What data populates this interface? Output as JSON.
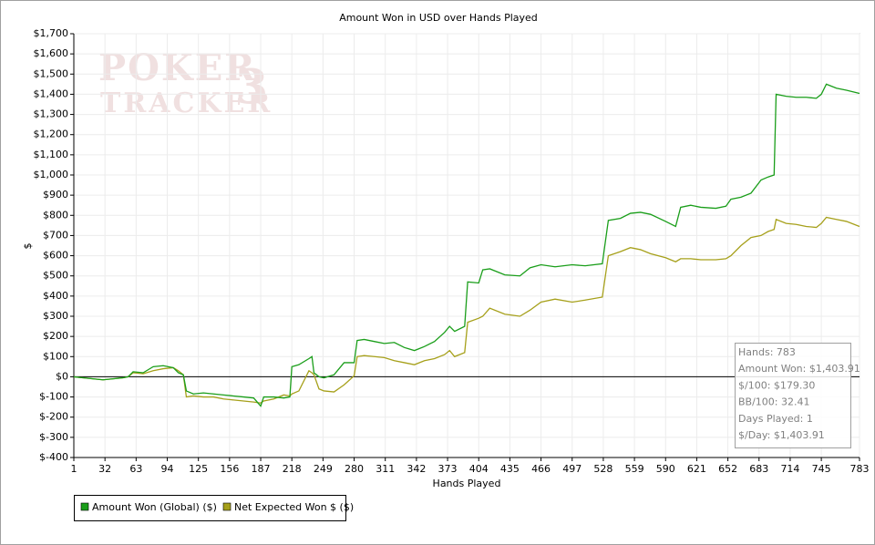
{
  "chart_data": {
    "type": "line",
    "title": "Amount Won in USD over Hands Played",
    "x_label": "Hands Played",
    "y_label": "$",
    "watermark": [
      "POKER",
      "TRACKER",
      "3"
    ],
    "xlim": [
      1,
      783
    ],
    "xticks": [
      1,
      32,
      63,
      94,
      125,
      156,
      187,
      218,
      249,
      280,
      311,
      342,
      373,
      404,
      435,
      466,
      497,
      528,
      559,
      590,
      621,
      652,
      683,
      714,
      745,
      783
    ],
    "ylim": [
      -400,
      1700
    ],
    "yticks": [
      {
        "value": -400,
        "label": "$-400"
      },
      {
        "value": -300,
        "label": "$-300"
      },
      {
        "value": -200,
        "label": "$-200"
      },
      {
        "value": -100,
        "label": "$-100"
      },
      {
        "value": 0,
        "label": "$0"
      },
      {
        "value": 100,
        "label": "$100"
      },
      {
        "value": 200,
        "label": "$200"
      },
      {
        "value": 300,
        "label": "$300"
      },
      {
        "value": 400,
        "label": "$400"
      },
      {
        "value": 500,
        "label": "$500"
      },
      {
        "value": 600,
        "label": "$600"
      },
      {
        "value": 700,
        "label": "$700"
      },
      {
        "value": 800,
        "label": "$800"
      },
      {
        "value": 900,
        "label": "$900"
      },
      {
        "value": 1000,
        "label": "$1,000"
      },
      {
        "value": 1100,
        "label": "$1,100"
      },
      {
        "value": 1200,
        "label": "$1,200"
      },
      {
        "value": 1300,
        "label": "$1,300"
      },
      {
        "value": 1400,
        "label": "$1,400"
      },
      {
        "value": 1500,
        "label": "$1,500"
      },
      {
        "value": 1600,
        "label": "$1,600"
      },
      {
        "value": 1700,
        "label": "$1,700"
      }
    ],
    "grid": true,
    "legend": "bottom-left",
    "x": [
      1,
      10,
      20,
      30,
      40,
      50,
      55,
      60,
      70,
      80,
      90,
      100,
      105,
      110,
      113,
      120,
      130,
      140,
      150,
      160,
      170,
      180,
      187,
      190,
      200,
      210,
      216,
      218,
      225,
      235,
      238,
      240,
      245,
      250,
      260,
      270,
      280,
      283,
      290,
      300,
      310,
      320,
      330,
      340,
      350,
      360,
      370,
      375,
      380,
      390,
      393,
      404,
      408,
      415,
      430,
      445,
      455,
      466,
      480,
      497,
      510,
      527,
      533,
      545,
      555,
      565,
      575,
      590,
      600,
      605,
      615,
      625,
      640,
      650,
      655,
      665,
      675,
      685,
      692,
      698,
      700,
      710,
      720,
      730,
      740,
      745,
      750,
      760,
      770,
      783
    ],
    "series": [
      {
        "name": "Amount Won (Global) ($)",
        "color": "#1a9e1a",
        "values": [
          0,
          -5,
          -10,
          -15,
          -10,
          -5,
          0,
          25,
          20,
          50,
          55,
          45,
          20,
          10,
          -70,
          -85,
          -80,
          -85,
          -90,
          -95,
          -100,
          -105,
          -145,
          -100,
          -100,
          -105,
          -100,
          50,
          60,
          90,
          100,
          20,
          0,
          -5,
          10,
          70,
          70,
          180,
          185,
          175,
          165,
          170,
          145,
          130,
          150,
          175,
          220,
          250,
          225,
          250,
          470,
          465,
          530,
          535,
          505,
          500,
          540,
          555,
          545,
          555,
          550,
          560,
          775,
          785,
          810,
          815,
          805,
          770,
          745,
          840,
          850,
          840,
          835,
          845,
          880,
          890,
          910,
          975,
          990,
          1000,
          1400,
          1390,
          1385,
          1385,
          1380,
          1400,
          1450,
          1430,
          1420,
          1404
        ]
      },
      {
        "name": "Net Expected Won $ ($)",
        "color": "#a6a01a",
        "values": [
          0,
          -5,
          -10,
          -15,
          -10,
          -5,
          0,
          20,
          15,
          30,
          40,
          45,
          30,
          10,
          -100,
          -95,
          -100,
          -100,
          -110,
          -115,
          -120,
          -125,
          -130,
          -120,
          -110,
          -90,
          -95,
          -85,
          -70,
          30,
          20,
          10,
          -60,
          -70,
          -75,
          -40,
          5,
          100,
          105,
          100,
          95,
          80,
          70,
          60,
          80,
          90,
          110,
          130,
          100,
          120,
          270,
          290,
          300,
          340,
          310,
          300,
          330,
          370,
          385,
          370,
          380,
          395,
          600,
          620,
          640,
          630,
          610,
          590,
          570,
          585,
          585,
          580,
          580,
          585,
          600,
          650,
          690,
          700,
          720,
          730,
          780,
          760,
          755,
          745,
          740,
          760,
          790,
          780,
          770,
          745
        ]
      }
    ],
    "stats": [
      "Hands: 783",
      "Amount Won: $1,403.91",
      "$/100: $179.30",
      "BB/100: 32.41",
      "Days Played: 1",
      "$/Day: $1,403.91"
    ]
  }
}
